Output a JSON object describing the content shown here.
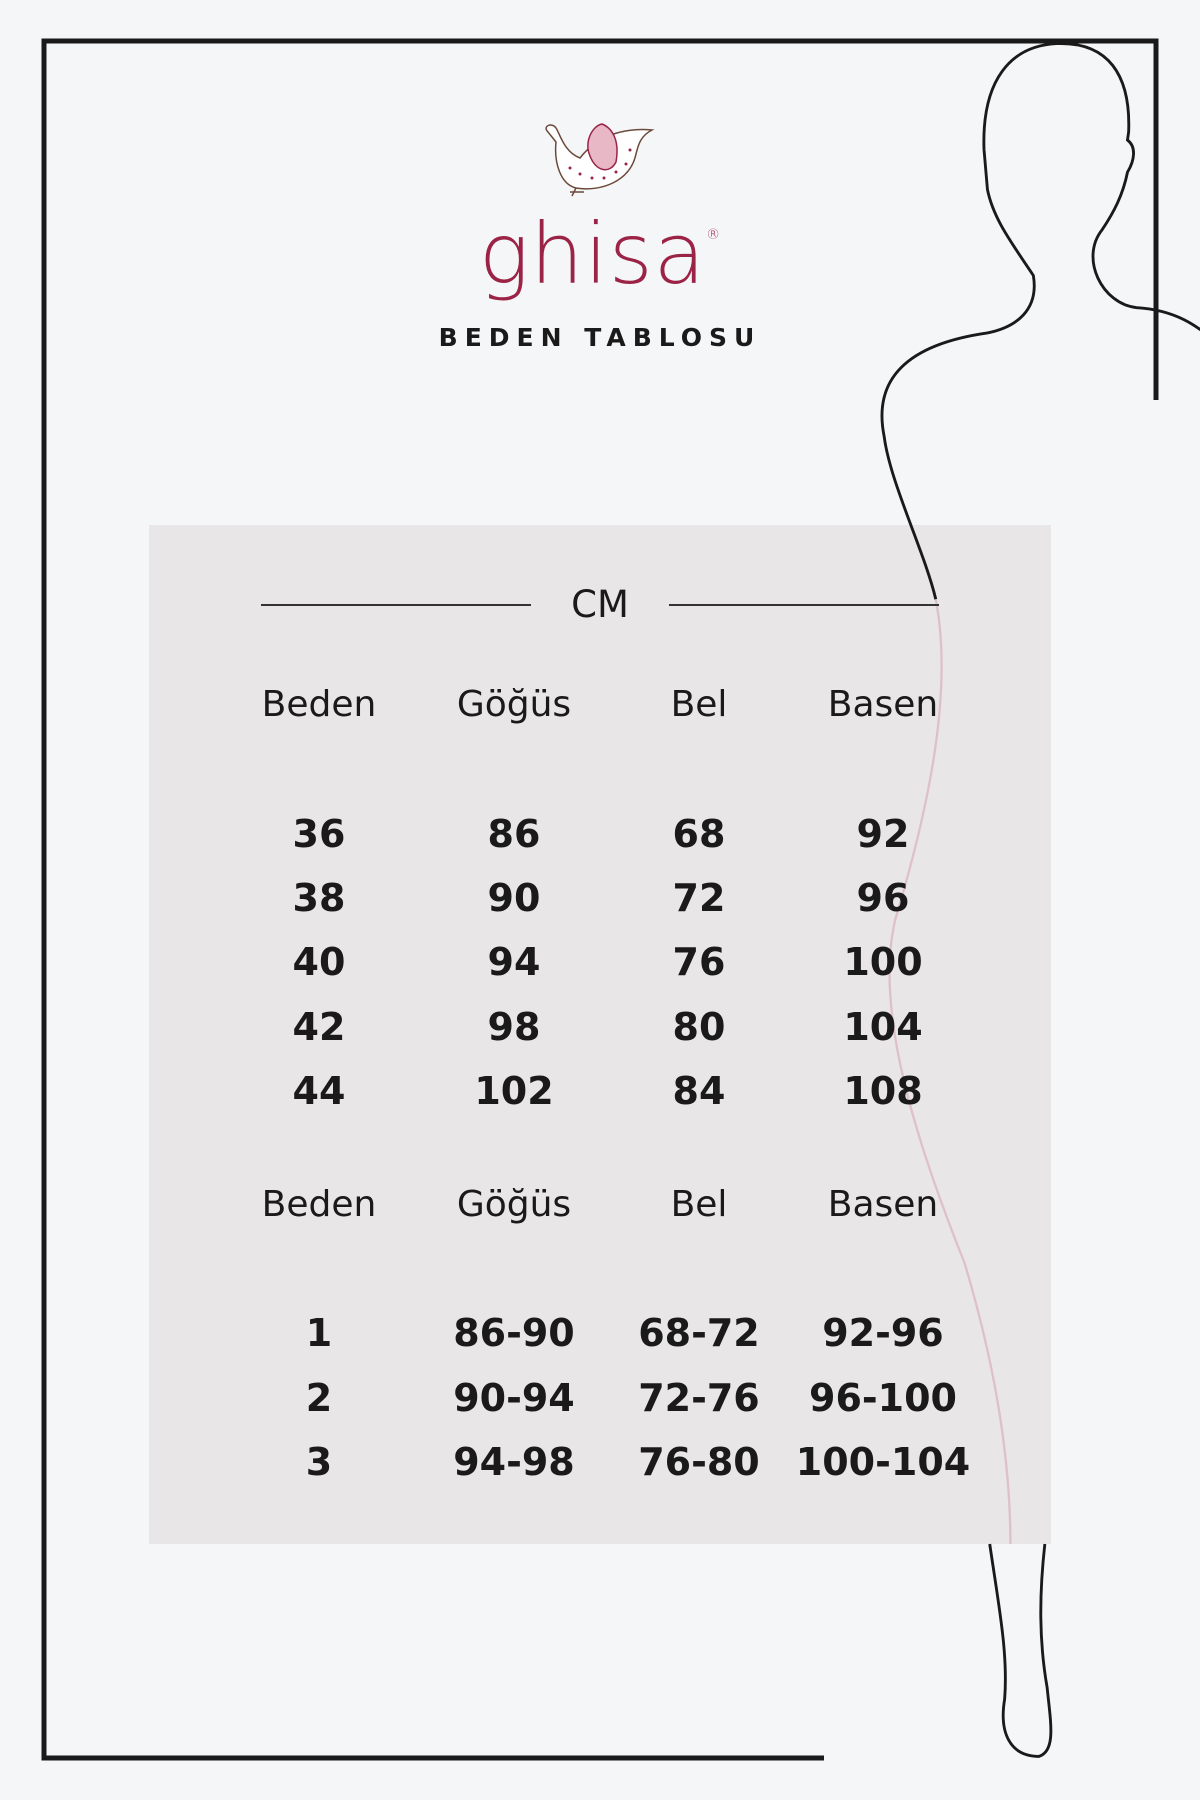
{
  "brand": {
    "name": "ghisa",
    "registered_mark": "®",
    "color": "#9b2346",
    "logo_icon": "bird-icon"
  },
  "title": "BEDEN TABLOSU",
  "unit": "CM",
  "table1": {
    "headers": [
      "Beden",
      "Göğüs",
      "Bel",
      "Basen"
    ],
    "rows": [
      [
        "36",
        "86",
        "68",
        "92"
      ],
      [
        "38",
        "90",
        "72",
        "96"
      ],
      [
        "40",
        "94",
        "76",
        "100"
      ],
      [
        "42",
        "98",
        "80",
        "104"
      ],
      [
        "44",
        "102",
        "84",
        "108"
      ]
    ]
  },
  "table2": {
    "headers": [
      "Beden",
      "Göğüs",
      "Bel",
      "Basen"
    ],
    "rows": [
      [
        "1",
        "86-90",
        "68-72",
        "92-96"
      ],
      [
        "2",
        "90-94",
        "72-76",
        "96-100"
      ],
      [
        "3",
        "94-98",
        "76-80",
        "100-104"
      ]
    ]
  },
  "colors": {
    "background": "#f5f6f8",
    "table_background": "#e9e6e7",
    "outline": "#1a1a1a"
  }
}
